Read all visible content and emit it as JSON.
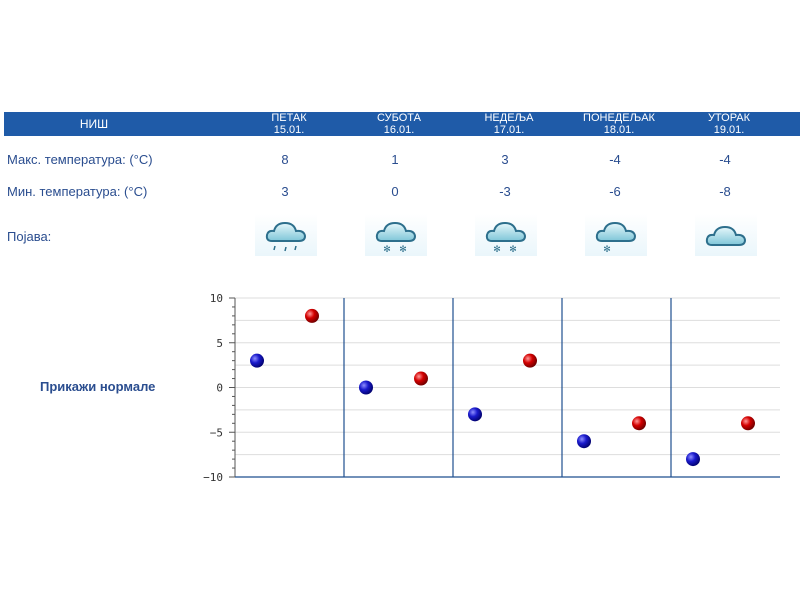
{
  "header": {
    "city": "НИШ",
    "days": [
      {
        "name": "ПЕТАК",
        "date": "15.01."
      },
      {
        "name": "СУБОТА",
        "date": "16.01."
      },
      {
        "name": "НЕДЕЉА",
        "date": "17.01."
      },
      {
        "name": "ПОНЕДЕЉАК",
        "date": "18.01."
      },
      {
        "name": "УТОРАК",
        "date": "19.01."
      }
    ]
  },
  "rows": {
    "max_label": "Макс. температура: (°C)",
    "min_label": "Мин. температура: (°C)",
    "phenomenon_label": "Појава:",
    "max_values": [
      "8",
      "1",
      "3",
      "-4",
      "-4"
    ],
    "min_values": [
      "3",
      "0",
      "-3",
      "-6",
      "-8"
    ],
    "icons": [
      "cloud-rain-icon",
      "cloud-snow-icon",
      "cloud-snow-icon",
      "cloud-light-snow-icon",
      "cloud-icon"
    ]
  },
  "show_normals": "Прикажи нормале",
  "colors": {
    "header_bg": "#1f5ba8",
    "text": "#2a4d8f",
    "min_dot": "#0a0ab0",
    "max_dot": "#c00000",
    "grid": "#dddddd",
    "divider": "#1f4f8f"
  },
  "chart_data": {
    "type": "scatter",
    "categories": [
      "ПЕТАК 15.01.",
      "СУБОТА 16.01.",
      "НЕДЕЉА 17.01.",
      "ПОНЕДЕЉАК 18.01.",
      "УТОРАК 19.01."
    ],
    "series": [
      {
        "name": "min",
        "values": [
          3,
          0,
          -3,
          -6,
          -8
        ]
      },
      {
        "name": "max",
        "values": [
          8,
          1,
          3,
          -4,
          -4
        ]
      }
    ],
    "y_ticks": [
      "10",
      "5",
      "0",
      "−5",
      "−10"
    ],
    "ylim": [
      -10,
      10
    ],
    "title": "",
    "xlabel": "",
    "ylabel": ""
  }
}
